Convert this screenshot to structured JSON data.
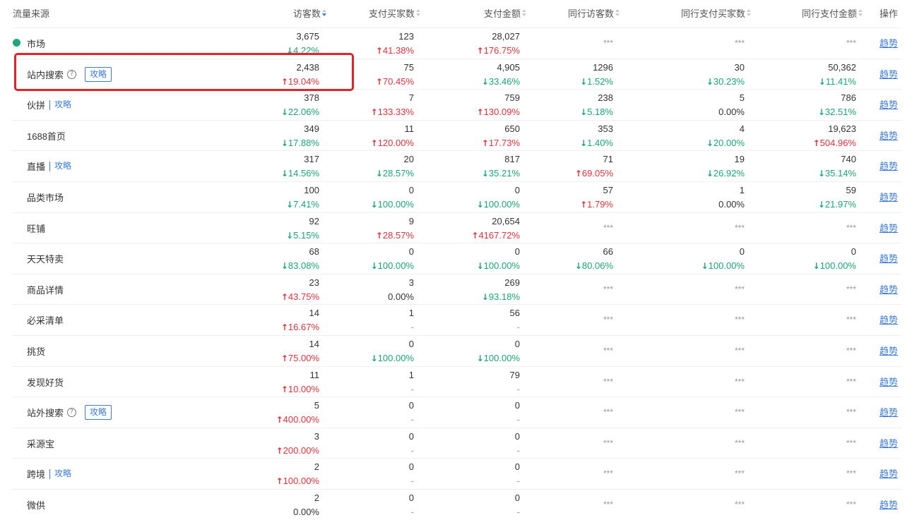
{
  "header": {
    "source": "流量来源",
    "visitors": "访客数",
    "buyers": "支付买家数",
    "amount": "支付金额",
    "peer_visitors": "同行访客数",
    "peer_buyers": "同行支付买家数",
    "peer_amount": "同行支付金额",
    "action": "操作"
  },
  "trend_label": "趋势",
  "guide_label": "攻略",
  "mask_text": "***",
  "help_icon": "question-circle-icon",
  "colors": {
    "up": "#e8303a",
    "down": "#17a874",
    "link": "#3a7bdc",
    "highlight": "#e3222a"
  },
  "rows": [
    {
      "name": "市场",
      "dot": true,
      "visitors": "3,675",
      "visitors_chg": "4.22%",
      "visitors_dir": "down",
      "buyers": "123",
      "buyers_chg": "41.38%",
      "buyers_dir": "up",
      "amount": "28,027",
      "amount_chg": "176.75%",
      "amount_dir": "up",
      "peer": null
    },
    {
      "name": "站内搜索",
      "help": true,
      "guide": true,
      "highlight": true,
      "visitors": "2,438",
      "visitors_chg": "19.04%",
      "visitors_dir": "up",
      "buyers": "75",
      "buyers_chg": "70.45%",
      "buyers_dir": "up",
      "amount": "4,905",
      "amount_chg": "33.46%",
      "amount_dir": "down",
      "peer": {
        "visitors": "1296",
        "visitors_chg": "1.52%",
        "visitors_dir": "down",
        "buyers": "30",
        "buyers_chg": "30.23%",
        "buyers_dir": "down",
        "amount": "50,362",
        "amount_chg": "11.41%",
        "amount_dir": "down"
      }
    },
    {
      "name": "伙拼",
      "guide": true,
      "guide_tight": true,
      "visitors": "378",
      "visitors_chg": "22.06%",
      "visitors_dir": "down",
      "buyers": "7",
      "buyers_chg": "133.33%",
      "buyers_dir": "up",
      "amount": "759",
      "amount_chg": "130.09%",
      "amount_dir": "up",
      "peer": {
        "visitors": "238",
        "visitors_chg": "5.18%",
        "visitors_dir": "down",
        "buyers": "5",
        "buyers_chg": "0.00%",
        "buyers_dir": "flat",
        "amount": "786",
        "amount_chg": "32.51%",
        "amount_dir": "down"
      }
    },
    {
      "name": "1688首页",
      "visitors": "349",
      "visitors_chg": "17.88%",
      "visitors_dir": "down",
      "buyers": "11",
      "buyers_chg": "120.00%",
      "buyers_dir": "up",
      "amount": "650",
      "amount_chg": "17.73%",
      "amount_dir": "up",
      "peer": {
        "visitors": "353",
        "visitors_chg": "1.40%",
        "visitors_dir": "down",
        "buyers": "4",
        "buyers_chg": "20.00%",
        "buyers_dir": "down",
        "amount": "19,623",
        "amount_chg": "504.96%",
        "amount_dir": "up"
      }
    },
    {
      "name": "直播",
      "guide": true,
      "guide_tight": true,
      "visitors": "317",
      "visitors_chg": "14.56%",
      "visitors_dir": "down",
      "buyers": "20",
      "buyers_chg": "28.57%",
      "buyers_dir": "down",
      "amount": "817",
      "amount_chg": "35.21%",
      "amount_dir": "down",
      "peer": {
        "visitors": "71",
        "visitors_chg": "69.05%",
        "visitors_dir": "up",
        "buyers": "19",
        "buyers_chg": "26.92%",
        "buyers_dir": "down",
        "amount": "740",
        "amount_chg": "35.14%",
        "amount_dir": "down"
      }
    },
    {
      "name": "品类市场",
      "visitors": "100",
      "visitors_chg": "7.41%",
      "visitors_dir": "down",
      "buyers": "0",
      "buyers_chg": "100.00%",
      "buyers_dir": "down",
      "amount": "0",
      "amount_chg": "100.00%",
      "amount_dir": "down",
      "peer": {
        "visitors": "57",
        "visitors_chg": "1.79%",
        "visitors_dir": "up",
        "buyers": "1",
        "buyers_chg": "0.00%",
        "buyers_dir": "flat",
        "amount": "59",
        "amount_chg": "21.97%",
        "amount_dir": "down"
      }
    },
    {
      "name": "旺铺",
      "visitors": "92",
      "visitors_chg": "5.15%",
      "visitors_dir": "down",
      "buyers": "9",
      "buyers_chg": "28.57%",
      "buyers_dir": "up",
      "amount": "20,654",
      "amount_chg": "4167.72%",
      "amount_dir": "up",
      "peer": null
    },
    {
      "name": "天天特卖",
      "visitors": "68",
      "visitors_chg": "83.08%",
      "visitors_dir": "down",
      "buyers": "0",
      "buyers_chg": "100.00%",
      "buyers_dir": "down",
      "amount": "0",
      "amount_chg": "100.00%",
      "amount_dir": "down",
      "peer": {
        "visitors": "66",
        "visitors_chg": "80.06%",
        "visitors_dir": "down",
        "buyers": "0",
        "buyers_chg": "100.00%",
        "buyers_dir": "down",
        "amount": "0",
        "amount_chg": "100.00%",
        "amount_dir": "down"
      }
    },
    {
      "name": "商品详情",
      "visitors": "23",
      "visitors_chg": "43.75%",
      "visitors_dir": "up",
      "buyers": "3",
      "buyers_chg": "0.00%",
      "buyers_dir": "flat",
      "amount": "269",
      "amount_chg": "93.18%",
      "amount_dir": "down",
      "peer": null
    },
    {
      "name": "必采清单",
      "visitors": "14",
      "visitors_chg": "16.67%",
      "visitors_dir": "up",
      "buyers": "1",
      "buyers_chg": "-",
      "buyers_dir": "dash",
      "amount": "56",
      "amount_chg": "-",
      "amount_dir": "dash",
      "peer": null
    },
    {
      "name": "挑货",
      "visitors": "14",
      "visitors_chg": "75.00%",
      "visitors_dir": "up",
      "buyers": "0",
      "buyers_chg": "100.00%",
      "buyers_dir": "down",
      "amount": "0",
      "amount_chg": "100.00%",
      "amount_dir": "down",
      "peer": null
    },
    {
      "name": "发现好货",
      "visitors": "11",
      "visitors_chg": "10.00%",
      "visitors_dir": "up",
      "buyers": "1",
      "buyers_chg": "-",
      "buyers_dir": "dash",
      "amount": "79",
      "amount_chg": "-",
      "amount_dir": "dash",
      "peer": null
    },
    {
      "name": "站外搜索",
      "help": true,
      "guide": true,
      "visitors": "5",
      "visitors_chg": "400.00%",
      "visitors_dir": "up",
      "buyers": "0",
      "buyers_chg": "-",
      "buyers_dir": "dash",
      "amount": "0",
      "amount_chg": "-",
      "amount_dir": "dash",
      "peer": null
    },
    {
      "name": "采源宝",
      "visitors": "3",
      "visitors_chg": "200.00%",
      "visitors_dir": "up",
      "buyers": "0",
      "buyers_chg": "-",
      "buyers_dir": "dash",
      "amount": "0",
      "amount_chg": "-",
      "amount_dir": "dash",
      "peer": null
    },
    {
      "name": "跨境",
      "guide": true,
      "guide_tight": true,
      "visitors": "2",
      "visitors_chg": "100.00%",
      "visitors_dir": "up",
      "buyers": "0",
      "buyers_chg": "-",
      "buyers_dir": "dash",
      "amount": "0",
      "amount_chg": "-",
      "amount_dir": "dash",
      "peer": null
    },
    {
      "name": "微供",
      "visitors": "2",
      "visitors_chg": "0.00%",
      "visitors_dir": "flat",
      "buyers": "0",
      "buyers_chg": "-",
      "buyers_dir": "dash",
      "amount": "0",
      "amount_chg": "-",
      "amount_dir": "dash",
      "peer": null
    }
  ]
}
